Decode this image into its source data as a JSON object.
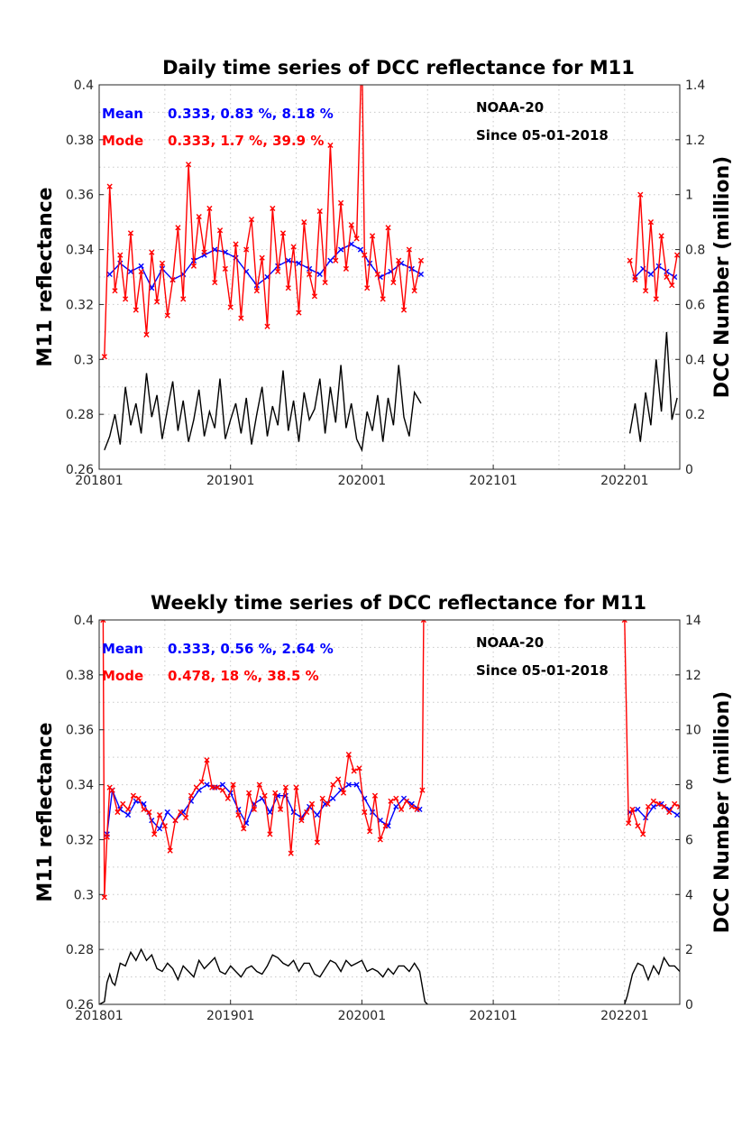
{
  "chart_data": [
    {
      "type": "line",
      "title": "Daily time series of DCC reflectance for M11",
      "ylabel": "M11 reflectance",
      "y2label": "DCC Number (million)",
      "xlim": [
        2018.0,
        2022.42
      ],
      "ylim": [
        0.26,
        0.4
      ],
      "y2lim": [
        0,
        1.4
      ],
      "x_ticks": [
        "201801",
        "201901",
        "202001",
        "202101",
        "202201"
      ],
      "y_ticks": [
        "0.26",
        "0.28",
        "0.3",
        "0.32",
        "0.34",
        "0.36",
        "0.38",
        "0.4"
      ],
      "y2_ticks": [
        "0",
        "0.2",
        "0.4",
        "0.6",
        "0.8",
        "1",
        "1.2",
        "1.4"
      ],
      "grid": true,
      "annotations": {
        "mean_label": "Mean",
        "mean_values": "0.333, 0.83 %, 8.18 %",
        "mode_label": "Mode",
        "mode_values": "0.333, 1.7 %, 39.9 %",
        "satellite": "NOAA-20",
        "since": "Since 05-01-2018"
      },
      "series": [
        {
          "name": "Mean",
          "axis": "left",
          "color": "#0000ff",
          "marker": "x",
          "x": [
            2018.08,
            2018.16,
            2018.24,
            2018.32,
            2018.4,
            2018.48,
            2018.56,
            2018.64,
            2018.72,
            2018.8,
            2018.88,
            2018.96,
            2019.04,
            2019.12,
            2019.2,
            2019.28,
            2019.36,
            2019.44,
            2019.52,
            2019.6,
            2019.68,
            2019.76,
            2019.84,
            2019.92,
            2019.99,
            2020.06,
            2020.14,
            2020.22,
            2020.3,
            2020.38,
            2020.45,
            2022.08,
            2022.14,
            2022.2,
            2022.26,
            2022.32,
            2022.38
          ],
          "values": [
            0.331,
            0.335,
            0.332,
            0.334,
            0.326,
            0.333,
            0.329,
            0.331,
            0.336,
            0.338,
            0.34,
            0.339,
            0.337,
            0.332,
            0.327,
            0.33,
            0.334,
            0.336,
            0.335,
            0.333,
            0.331,
            0.336,
            0.34,
            0.342,
            0.34,
            0.335,
            0.33,
            0.332,
            0.335,
            0.333,
            0.331,
            0.33,
            0.333,
            0.331,
            0.334,
            0.332,
            0.33
          ]
        },
        {
          "name": "Mode",
          "axis": "left",
          "color": "#ff0000",
          "marker": "x",
          "x": [
            2018.04,
            2018.08,
            2018.12,
            2018.16,
            2018.2,
            2018.24,
            2018.28,
            2018.32,
            2018.36,
            2018.4,
            2018.44,
            2018.48,
            2018.52,
            2018.56,
            2018.6,
            2018.64,
            2018.68,
            2018.72,
            2018.76,
            2018.8,
            2018.84,
            2018.88,
            2018.92,
            2018.96,
            2019.0,
            2019.04,
            2019.08,
            2019.12,
            2019.16,
            2019.2,
            2019.24,
            2019.28,
            2019.32,
            2019.36,
            2019.4,
            2019.44,
            2019.48,
            2019.52,
            2019.56,
            2019.6,
            2019.64,
            2019.68,
            2019.72,
            2019.76,
            2019.8,
            2019.84,
            2019.88,
            2019.92,
            2019.96,
            2020.0,
            2020.02,
            2020.04,
            2020.08,
            2020.12,
            2020.16,
            2020.2,
            2020.24,
            2020.28,
            2020.32,
            2020.36,
            2020.4,
            2020.45,
            2022.04,
            2022.08,
            2022.12,
            2022.16,
            2022.2,
            2022.24,
            2022.28,
            2022.32,
            2022.36,
            2022.4
          ],
          "values": [
            0.301,
            0.363,
            0.325,
            0.338,
            0.322,
            0.346,
            0.318,
            0.332,
            0.309,
            0.339,
            0.321,
            0.335,
            0.316,
            0.329,
            0.348,
            0.322,
            0.371,
            0.334,
            0.352,
            0.339,
            0.355,
            0.328,
            0.347,
            0.333,
            0.319,
            0.342,
            0.315,
            0.34,
            0.351,
            0.325,
            0.337,
            0.312,
            0.355,
            0.332,
            0.346,
            0.326,
            0.341,
            0.317,
            0.35,
            0.331,
            0.323,
            0.354,
            0.328,
            0.378,
            0.336,
            0.357,
            0.333,
            0.349,
            0.344,
            0.415,
            0.338,
            0.326,
            0.345,
            0.331,
            0.322,
            0.348,
            0.328,
            0.336,
            0.318,
            0.34,
            0.325,
            0.336,
            0.336,
            0.329,
            0.36,
            0.325,
            0.35,
            0.322,
            0.345,
            0.33,
            0.327,
            0.338
          ]
        },
        {
          "name": "DCC Number",
          "axis": "right",
          "color": "#000000",
          "x": [
            2018.04,
            2018.08,
            2018.12,
            2018.16,
            2018.2,
            2018.24,
            2018.28,
            2018.32,
            2018.36,
            2018.4,
            2018.44,
            2018.48,
            2018.52,
            2018.56,
            2018.6,
            2018.64,
            2018.68,
            2018.72,
            2018.76,
            2018.8,
            2018.84,
            2018.88,
            2018.92,
            2018.96,
            2019.0,
            2019.04,
            2019.08,
            2019.12,
            2019.16,
            2019.2,
            2019.24,
            2019.28,
            2019.32,
            2019.36,
            2019.4,
            2019.44,
            2019.48,
            2019.52,
            2019.56,
            2019.6,
            2019.64,
            2019.68,
            2019.72,
            2019.76,
            2019.8,
            2019.84,
            2019.88,
            2019.92,
            2019.96,
            2020.0,
            2020.04,
            2020.08,
            2020.12,
            2020.16,
            2020.2,
            2020.24,
            2020.28,
            2020.32,
            2020.36,
            2020.4,
            2020.45,
            2022.04,
            2022.08,
            2022.12,
            2022.16,
            2022.2,
            2022.24,
            2022.28,
            2022.32,
            2022.36,
            2022.4
          ],
          "values": [
            0.07,
            0.12,
            0.2,
            0.09,
            0.3,
            0.16,
            0.24,
            0.13,
            0.35,
            0.19,
            0.27,
            0.11,
            0.22,
            0.32,
            0.14,
            0.25,
            0.1,
            0.18,
            0.29,
            0.12,
            0.21,
            0.15,
            0.33,
            0.11,
            0.18,
            0.24,
            0.13,
            0.26,
            0.09,
            0.2,
            0.3,
            0.12,
            0.23,
            0.16,
            0.36,
            0.14,
            0.25,
            0.1,
            0.28,
            0.18,
            0.22,
            0.33,
            0.13,
            0.3,
            0.17,
            0.38,
            0.15,
            0.24,
            0.11,
            0.07,
            0.21,
            0.14,
            0.27,
            0.1,
            0.26,
            0.16,
            0.38,
            0.19,
            0.12,
            0.28,
            0.24,
            0.13,
            0.24,
            0.1,
            0.28,
            0.16,
            0.4,
            0.21,
            0.5,
            0.18,
            0.26
          ]
        }
      ]
    },
    {
      "type": "line",
      "title": "Weekly time series of DCC reflectance for M11",
      "ylabel": "M11 reflectance",
      "y2label": "DCC Number (million)",
      "xlim": [
        2018.0,
        2022.42
      ],
      "ylim": [
        0.26,
        0.4
      ],
      "y2lim": [
        0,
        14
      ],
      "x_ticks": [
        "201801",
        "201901",
        "202001",
        "202101",
        "202201"
      ],
      "y_ticks": [
        "0.26",
        "0.28",
        "0.3",
        "0.32",
        "0.34",
        "0.36",
        "0.38",
        "0.4"
      ],
      "y2_ticks": [
        "0",
        "2",
        "4",
        "6",
        "8",
        "10",
        "12",
        "14"
      ],
      "grid": true,
      "annotations": {
        "mean_label": "Mean",
        "mean_values": "0.333, 0.56 %, 2.64 %",
        "mode_label": "Mode",
        "mode_values": "0.478, 18 %, 38.5 %",
        "satellite": "NOAA-20",
        "since": "Since 05-01-2018"
      },
      "series": [
        {
          "name": "Mean",
          "axis": "left",
          "color": "#0000ff",
          "marker": "x",
          "x": [
            2018.06,
            2018.1,
            2018.16,
            2018.22,
            2018.28,
            2018.34,
            2018.4,
            2018.46,
            2018.52,
            2018.58,
            2018.64,
            2018.7,
            2018.76,
            2018.82,
            2018.88,
            2018.94,
            2019.0,
            2019.06,
            2019.12,
            2019.18,
            2019.24,
            2019.3,
            2019.36,
            2019.42,
            2019.48,
            2019.54,
            2019.6,
            2019.66,
            2019.72,
            2019.78,
            2019.84,
            2019.9,
            2019.96,
            2020.02,
            2020.08,
            2020.14,
            2020.2,
            2020.26,
            2020.32,
            2020.38,
            2020.44,
            2022.04,
            2022.1,
            2022.16,
            2022.22,
            2022.28,
            2022.34,
            2022.4
          ],
          "values": [
            0.322,
            0.338,
            0.331,
            0.329,
            0.334,
            0.333,
            0.327,
            0.324,
            0.33,
            0.327,
            0.33,
            0.334,
            0.338,
            0.34,
            0.339,
            0.34,
            0.337,
            0.331,
            0.326,
            0.333,
            0.335,
            0.33,
            0.336,
            0.336,
            0.33,
            0.328,
            0.332,
            0.329,
            0.333,
            0.335,
            0.338,
            0.34,
            0.34,
            0.335,
            0.33,
            0.327,
            0.325,
            0.332,
            0.335,
            0.333,
            0.331,
            0.33,
            0.331,
            0.328,
            0.332,
            0.333,
            0.331,
            0.329
          ]
        },
        {
          "name": "Mode",
          "axis": "left",
          "color": "#ff0000",
          "marker": "x",
          "x": [
            2018.03,
            2018.04,
            2018.06,
            2018.08,
            2018.1,
            2018.14,
            2018.18,
            2018.22,
            2018.26,
            2018.3,
            2018.34,
            2018.38,
            2018.42,
            2018.46,
            2018.5,
            2018.54,
            2018.58,
            2018.62,
            2018.66,
            2018.7,
            2018.74,
            2018.78,
            2018.82,
            2018.86,
            2018.9,
            2018.94,
            2018.98,
            2019.02,
            2019.06,
            2019.1,
            2019.14,
            2019.18,
            2019.22,
            2019.26,
            2019.3,
            2019.34,
            2019.38,
            2019.42,
            2019.46,
            2019.5,
            2019.54,
            2019.58,
            2019.62,
            2019.66,
            2019.7,
            2019.74,
            2019.78,
            2019.82,
            2019.86,
            2019.9,
            2019.94,
            2019.98,
            2020.02,
            2020.06,
            2020.1,
            2020.14,
            2020.18,
            2020.22,
            2020.26,
            2020.3,
            2020.34,
            2020.38,
            2020.42,
            2020.46,
            2020.47,
            2022.0,
            2022.03,
            2022.06,
            2022.1,
            2022.14,
            2022.18,
            2022.22,
            2022.26,
            2022.3,
            2022.34,
            2022.38,
            2022.42
          ],
          "values": [
            0.4,
            0.299,
            0.321,
            0.339,
            0.338,
            0.33,
            0.333,
            0.331,
            0.336,
            0.335,
            0.331,
            0.33,
            0.322,
            0.329,
            0.325,
            0.316,
            0.327,
            0.33,
            0.328,
            0.336,
            0.339,
            0.341,
            0.349,
            0.339,
            0.339,
            0.338,
            0.335,
            0.34,
            0.329,
            0.324,
            0.337,
            0.331,
            0.34,
            0.336,
            0.322,
            0.337,
            0.331,
            0.339,
            0.315,
            0.339,
            0.327,
            0.33,
            0.333,
            0.319,
            0.335,
            0.333,
            0.34,
            0.342,
            0.337,
            0.351,
            0.345,
            0.346,
            0.33,
            0.323,
            0.336,
            0.32,
            0.325,
            0.334,
            0.335,
            0.331,
            0.334,
            0.332,
            0.331,
            0.338,
            0.4,
            0.4,
            0.326,
            0.331,
            0.325,
            0.322,
            0.332,
            0.334,
            0.333,
            0.332,
            0.33,
            0.333,
            0.332
          ]
        },
        {
          "name": "DCC Number",
          "axis": "right",
          "color": "#000000",
          "x": [
            2018.0,
            2018.04,
            2018.06,
            2018.08,
            2018.1,
            2018.12,
            2018.16,
            2018.2,
            2018.24,
            2018.28,
            2018.32,
            2018.36,
            2018.4,
            2018.44,
            2018.48,
            2018.52,
            2018.56,
            2018.6,
            2018.64,
            2018.68,
            2018.72,
            2018.76,
            2018.8,
            2018.84,
            2018.88,
            2018.92,
            2018.96,
            2019.0,
            2019.04,
            2019.08,
            2019.12,
            2019.16,
            2019.2,
            2019.24,
            2019.28,
            2019.32,
            2019.36,
            2019.4,
            2019.44,
            2019.48,
            2019.52,
            2019.56,
            2019.6,
            2019.64,
            2019.68,
            2019.72,
            2019.76,
            2019.8,
            2019.84,
            2019.88,
            2019.92,
            2019.96,
            2020.0,
            2020.04,
            2020.08,
            2020.12,
            2020.16,
            2020.2,
            2020.24,
            2020.28,
            2020.32,
            2020.36,
            2020.4,
            2020.44,
            2020.48,
            2020.5,
            2022.0,
            2022.02,
            2022.06,
            2022.1,
            2022.14,
            2022.18,
            2022.22,
            2022.26,
            2022.3,
            2022.34,
            2022.38,
            2022.42
          ],
          "values": [
            0.0,
            0.1,
            0.8,
            1.1,
            0.8,
            0.7,
            1.5,
            1.4,
            1.9,
            1.6,
            2.0,
            1.6,
            1.8,
            1.3,
            1.2,
            1.5,
            1.3,
            0.9,
            1.4,
            1.2,
            1.0,
            1.6,
            1.3,
            1.5,
            1.7,
            1.2,
            1.1,
            1.4,
            1.2,
            1.0,
            1.3,
            1.4,
            1.2,
            1.1,
            1.4,
            1.8,
            1.7,
            1.5,
            1.4,
            1.6,
            1.2,
            1.5,
            1.5,
            1.1,
            1.0,
            1.3,
            1.6,
            1.5,
            1.2,
            1.6,
            1.4,
            1.5,
            1.6,
            1.2,
            1.3,
            1.2,
            1.0,
            1.3,
            1.1,
            1.4,
            1.4,
            1.2,
            1.5,
            1.2,
            0.1,
            0.0,
            0.0,
            0.3,
            1.1,
            1.5,
            1.4,
            0.9,
            1.4,
            1.1,
            1.7,
            1.4,
            1.4,
            1.2
          ]
        }
      ]
    }
  ]
}
